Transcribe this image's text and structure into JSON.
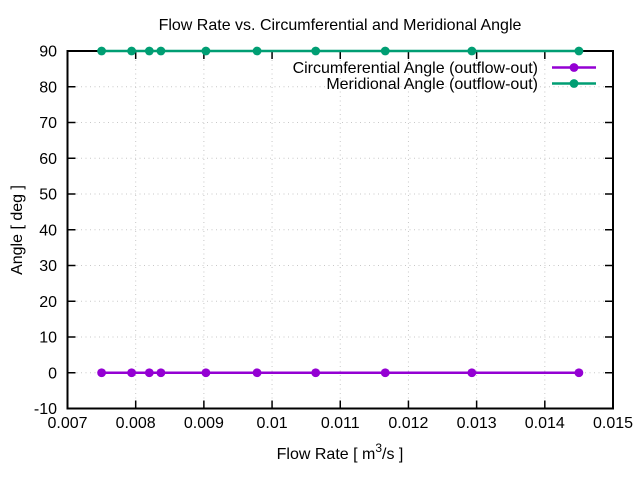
{
  "chart_data": {
    "type": "line",
    "title": "Flow Rate vs. Circumferential and Meridional Angle",
    "xlabel": "Flow Rate [ m³/s ]",
    "xlabel_parts": {
      "prefix": "Flow Rate [ m",
      "sup": "3",
      "suffix": "/s ]"
    },
    "ylabel": "Angle [ deg ]",
    "xlim": [
      0.007,
      0.015
    ],
    "ylim": [
      -10,
      90
    ],
    "x_ticks": [
      0.007,
      0.008,
      0.009,
      0.01,
      0.011,
      0.012,
      0.013,
      0.014,
      0.015
    ],
    "x_tick_labels": [
      "0.007",
      "0.008",
      "0.009",
      "0.01",
      "0.011",
      "0.012",
      "0.013",
      "0.014",
      "0.015"
    ],
    "y_ticks": [
      -10,
      0,
      10,
      20,
      30,
      40,
      50,
      60,
      70,
      80,
      90
    ],
    "y_tick_labels": [
      "-10",
      "0",
      "10",
      "20",
      "30",
      "40",
      "50",
      "60",
      "70",
      "80",
      "90"
    ],
    "grid": true,
    "grid_style": "dotted",
    "grid_color": "#c8c8c8",
    "legend_position": "top-right-inside",
    "x": [
      0.0075,
      0.00794,
      0.0082,
      0.00837,
      0.00903,
      0.00978,
      0.01064,
      0.01166,
      0.01293,
      0.0145
    ],
    "series": [
      {
        "name": "Circumferential Angle (outflow-out)",
        "color": "#9400d3",
        "marker": "filled-circle",
        "values": [
          0,
          0,
          0,
          0,
          0,
          0,
          0,
          0,
          0,
          0
        ]
      },
      {
        "name": "Meridional Angle (outflow-out)",
        "color": "#009e73",
        "marker": "filled-circle",
        "values": [
          90,
          90,
          90,
          90,
          90,
          90,
          90,
          90,
          90,
          90
        ]
      }
    ]
  }
}
